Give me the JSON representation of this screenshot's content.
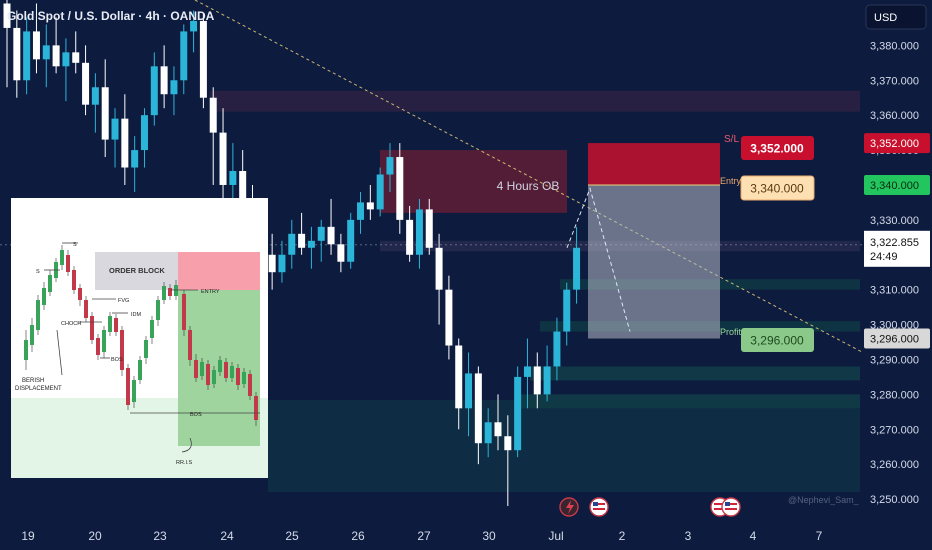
{
  "header": {
    "title": "Gold Spot / U.S. Dollar · 4h · OANDA",
    "currency": "USD"
  },
  "colors": {
    "background": "#0d1b3e",
    "bull": "#2bb5d9",
    "bear": "#ffffff",
    "stop_loss": "#c8102e",
    "entry": "#ffe0b3",
    "take_profit": "#8bc98b",
    "current_price": "#ffffff",
    "trendline": "#e8d27a"
  },
  "chart_data": {
    "type": "candlestick",
    "symbol": "XAUUSD",
    "timeframe": "4h",
    "ylim": [
      3244,
      3393
    ],
    "y_ticks": [
      3250,
      3260,
      3270,
      3280,
      3290,
      3300,
      3310,
      3320,
      3330,
      3340,
      3350,
      3360,
      3370,
      3380
    ],
    "y_tick_labels": [
      "3,250.000",
      "3,260.000",
      "3,270.000",
      "3,280.000",
      "3,290.000",
      "3,300.000",
      "3,310.000",
      "3,320.000",
      "3,330.000",
      "3,340.000",
      "3,350.000",
      "3,360.000",
      "3,370.000",
      "3,380.000"
    ],
    "x_labels": [
      "19",
      "20",
      "23",
      "24",
      "25",
      "26",
      "27",
      "30",
      "Jul",
      "2",
      "3",
      "4",
      "7"
    ],
    "candles": [
      [
        3392,
        3396,
        3368,
        3385
      ],
      [
        3385,
        3390,
        3365,
        3370
      ],
      [
        3370,
        3388,
        3366,
        3384
      ],
      [
        3384,
        3392,
        3372,
        3376
      ],
      [
        3376,
        3386,
        3368,
        3380
      ],
      [
        3380,
        3388,
        3372,
        3374
      ],
      [
        3374,
        3382,
        3364,
        3378
      ],
      [
        3378,
        3384,
        3372,
        3375
      ],
      [
        3375,
        3380,
        3360,
        3363
      ],
      [
        3363,
        3372,
        3355,
        3368
      ],
      [
        3368,
        3376,
        3348,
        3353
      ],
      [
        3353,
        3362,
        3345,
        3359
      ],
      [
        3359,
        3366,
        3340,
        3345
      ],
      [
        3345,
        3354,
        3338,
        3350
      ],
      [
        3350,
        3362,
        3345,
        3360
      ],
      [
        3360,
        3378,
        3357,
        3374
      ],
      [
        3374,
        3380,
        3362,
        3366
      ],
      [
        3366,
        3374,
        3360,
        3370
      ],
      [
        3370,
        3386,
        3366,
        3384
      ],
      [
        3384,
        3390,
        3378,
        3387
      ],
      [
        3387,
        3389,
        3362,
        3365
      ],
      [
        3365,
        3368,
        3340,
        3355
      ],
      [
        3355,
        3362,
        3330,
        3340
      ],
      [
        3340,
        3352,
        3324,
        3344
      ],
      [
        3344,
        3350,
        3330,
        3335
      ],
      [
        3335,
        3340,
        3322,
        3330
      ],
      [
        3330,
        3336,
        3318,
        3320
      ],
      [
        3320,
        3326,
        3310,
        3315
      ],
      [
        3315,
        3324,
        3312,
        3320
      ],
      [
        3320,
        3330,
        3316,
        3326
      ],
      [
        3326,
        3332,
        3320,
        3322
      ],
      [
        3322,
        3328,
        3316,
        3324
      ],
      [
        3324,
        3330,
        3318,
        3328
      ],
      [
        3328,
        3336,
        3320,
        3323
      ],
      [
        3323,
        3326,
        3315,
        3318
      ],
      [
        3318,
        3332,
        3316,
        3330
      ],
      [
        3330,
        3338,
        3326,
        3335
      ],
      [
        3335,
        3340,
        3330,
        3333
      ],
      [
        3333,
        3345,
        3331,
        3343
      ],
      [
        3343,
        3352,
        3338,
        3348
      ],
      [
        3348,
        3352,
        3326,
        3330
      ],
      [
        3330,
        3334,
        3318,
        3320
      ],
      [
        3320,
        3336,
        3316,
        3333
      ],
      [
        3333,
        3336,
        3320,
        3322
      ],
      [
        3322,
        3326,
        3300,
        3310
      ],
      [
        3310,
        3314,
        3290,
        3294
      ],
      [
        3294,
        3296,
        3270,
        3276
      ],
      [
        3276,
        3292,
        3268,
        3286
      ],
      [
        3286,
        3288,
        3260,
        3266
      ],
      [
        3266,
        3276,
        3262,
        3272
      ],
      [
        3272,
        3280,
        3264,
        3268
      ],
      [
        3268,
        3274,
        3248,
        3264
      ],
      [
        3264,
        3288,
        3262,
        3285
      ],
      [
        3285,
        3296,
        3276,
        3288
      ],
      [
        3288,
        3292,
        3276,
        3280
      ],
      [
        3280,
        3294,
        3278,
        3288
      ],
      [
        3288,
        3302,
        3284,
        3298
      ],
      [
        3298,
        3312,
        3294,
        3310
      ],
      [
        3310,
        3328,
        3306,
        3322
      ]
    ],
    "zones": [
      {
        "label": "4 Hours OB",
        "low": 3332,
        "high": 3350
      },
      {
        "label": "",
        "low": 3361,
        "high": 3367
      },
      {
        "label": "",
        "low": 3321,
        "high": 3324
      },
      {
        "label": "",
        "low": 3310,
        "high": 3313
      },
      {
        "label": "",
        "low": 3298,
        "high": 3301
      },
      {
        "label": "",
        "low": 3284,
        "high": 3288
      },
      {
        "label": "",
        "low": 3276,
        "high": 3280
      }
    ],
    "position": {
      "direction": "short",
      "stop_loss": 3352.0,
      "entry": 3340.0,
      "take_profit": 3296.0
    },
    "tags": {
      "sl": {
        "label": "S/L",
        "value": "3,352.000"
      },
      "entry": {
        "label": "Entry",
        "value": "3,340.000"
      },
      "profit": {
        "label": "Profit",
        "value": "3,296.000"
      }
    },
    "current": {
      "price": 3322.855,
      "label": "3,322.855",
      "countdown": "24:49"
    },
    "axis_markers": [
      {
        "value": 3352,
        "label": "3,352.000"
      },
      {
        "value": 3340,
        "label": "3,340.000"
      },
      {
        "value": 3296,
        "label": "3,296.000"
      }
    ]
  },
  "inset": {
    "order_block": "ORDER BLOCK",
    "entry": "ENTRY",
    "fvg": "FVG",
    "choch": "CHOCH",
    "idm": "IDM",
    "bos1": "BOS",
    "bos2": "BOS",
    "s1": "S",
    "s2": "S",
    "bearish": "BERISH",
    "displacement": "DISPLACEMENT",
    "rris": "RR.I.S"
  },
  "watermark": "@Nephevi_Sam_"
}
